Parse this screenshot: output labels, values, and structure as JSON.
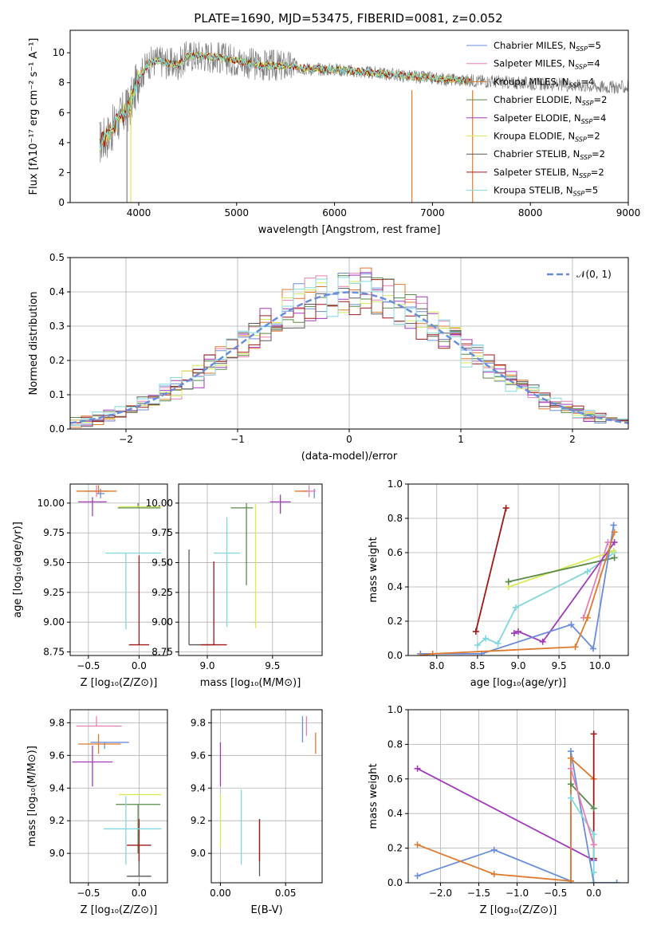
{
  "figure_title": "PLATE=1690, MJD=53475, FIBERID=0081, z=0.052",
  "colors": {
    "chabrier_miles": "#6a8ddb",
    "salpeter_miles": "#e87fb0",
    "kroupa_miles": "#df7a2e",
    "chabrier_elodie": "#5a8a4a",
    "salpeter_elodie": "#a03aba",
    "kroupa_elodie": "#d8ea5a",
    "chabrier_stelib": "#585858",
    "salpeter_stelib": "#a01818",
    "kroupa_stelib": "#80d8de",
    "data_gray": "#808080",
    "normal_dashed": "#6a8ddb",
    "grid": "#b0b0b0"
  },
  "chart_data": [
    {
      "id": "spectrum",
      "type": "line",
      "title": "PLATE=1690, MJD=53475, FIBERID=0081, z=0.052",
      "xlabel": "wavelength [Angstrom, rest frame]",
      "ylabel": "Flux [fλ10⁻¹⁷ erg cm⁻² s⁻¹ A⁻¹]",
      "xlim": [
        3300,
        9000
      ],
      "ylim": [
        0,
        11.5
      ],
      "xticks": [
        4000,
        5000,
        6000,
        7000,
        8000,
        9000
      ],
      "yticks": [
        0,
        2,
        4,
        6,
        8,
        10
      ],
      "grid": false,
      "legend_placement": "right",
      "legend": [
        {
          "label": "Chabrier MILES, N",
          "sub": "SSP",
          "suffix": "=5",
          "color_key": "chabrier_miles"
        },
        {
          "label": "Salpeter MILES, N",
          "sub": "SSP",
          "suffix": "=4",
          "color_key": "salpeter_miles"
        },
        {
          "label": "Kroupa MILES, N",
          "sub": "SSP",
          "suffix": "=4",
          "color_key": "kroupa_miles"
        },
        {
          "label": "Chabrier ELODIE, N",
          "sub": "SSP",
          "suffix": "=2",
          "color_key": "chabrier_elodie"
        },
        {
          "label": "Salpeter ELODIE, N",
          "sub": "SSP",
          "suffix": "=4",
          "color_key": "salpeter_elodie"
        },
        {
          "label": "Kroupa ELODIE, N",
          "sub": "SSP",
          "suffix": "=2",
          "color_key": "kroupa_elodie"
        },
        {
          "label": "Chabrier STELIB, N",
          "sub": "SSP",
          "suffix": "=2",
          "color_key": "chabrier_stelib"
        },
        {
          "label": "Salpeter STELIB, N",
          "sub": "SSP",
          "suffix": "=2",
          "color_key": "salpeter_stelib"
        },
        {
          "label": "Kroupa STELIB, N",
          "sub": "SSP",
          "suffix": "=5",
          "color_key": "kroupa_stelib"
        }
      ],
      "data_envelope": {
        "x": [
          3600,
          3700,
          3800,
          3900,
          4000,
          4100,
          4200,
          4300,
          4400,
          4500,
          4700,
          5000,
          5200,
          5500,
          5800,
          6000,
          6300,
          6600,
          6800,
          7000,
          7200,
          7400,
          7600,
          7800,
          8000,
          8200,
          8400,
          8600,
          8800,
          9000
        ],
        "y": [
          4.0,
          4.6,
          5.6,
          6.3,
          8.3,
          9.3,
          9.5,
          9.3,
          9.2,
          9.8,
          9.8,
          9.5,
          9.2,
          9.1,
          8.9,
          8.9,
          8.7,
          8.55,
          8.4,
          8.3,
          8.2,
          8.15,
          8.1,
          8.0,
          7.95,
          7.9,
          7.85,
          7.8,
          7.7,
          7.7
        ]
      },
      "model_range_x": [
        3600,
        7400
      ]
    },
    {
      "id": "residuals",
      "type": "line",
      "xlabel": "(data-model)/error",
      "ylabel": "Normed distribution",
      "xlim": [
        -2.5,
        2.5
      ],
      "ylim": [
        0,
        0.5
      ],
      "xticks": [
        -2,
        -1,
        0,
        1,
        2
      ],
      "xticklabels": [
        "−2",
        "−1",
        "0",
        "1",
        "2"
      ],
      "yticks": [
        0.0,
        0.1,
        0.2,
        0.3,
        0.4,
        0.5
      ],
      "grid": true,
      "legend_placement": "top-right",
      "legend": [
        {
          "label": "𝒩(0, 1)",
          "color_key": "normal_dashed",
          "dashed": true
        }
      ],
      "series": [
        {
          "name": "𝒩(0, 1)",
          "function": "normal",
          "mu": 0,
          "sigma": 1
        }
      ]
    },
    {
      "id": "age_vs_Z",
      "type": "scatter",
      "xlabel": "Z [log₁₀(Z/Z⊙)]",
      "ylabel": "age  [log₁₀(age/yr)]",
      "xlim": [
        -0.68,
        0.28
      ],
      "ylim": [
        8.72,
        10.16
      ],
      "xticks": [
        -0.5,
        0.0
      ],
      "xticklabels": [
        "−0.5",
        "0.0"
      ],
      "yticks": [
        8.75,
        9.0,
        9.25,
        9.5,
        9.75,
        10.0
      ],
      "yticklabels": [
        "8.75",
        "9.00",
        "9.25",
        "9.50",
        "9.75",
        "10.00"
      ],
      "grid": true,
      "points": [
        {
          "color_key": "chabrier_miles",
          "x": -0.38,
          "y": 10.08,
          "xerr": [
            0.04,
            0.04
          ],
          "yerr": [
            0.04,
            0.04
          ]
        },
        {
          "color_key": "salpeter_miles",
          "x": -0.42,
          "y": 10.1,
          "xerr": [
            0.12,
            0.12
          ],
          "yerr": [
            0.05,
            0.05
          ]
        },
        {
          "color_key": "kroupa_miles",
          "x": -0.4,
          "y": 10.1,
          "xerr": [
            0.22,
            0.18
          ],
          "yerr": [
            0.02,
            0.05
          ]
        },
        {
          "color_key": "chabrier_elodie",
          "x": -0.01,
          "y": 9.96,
          "xerr": [
            0.2,
            0.22
          ],
          "yerr": [
            0.0,
            0.04
          ]
        },
        {
          "color_key": "salpeter_elodie",
          "x": -0.46,
          "y": 10.01,
          "xerr": [
            0.14,
            0.14
          ],
          "yerr": [
            0.12,
            0.04
          ]
        },
        {
          "color_key": "kroupa_elodie",
          "x": 0.0,
          "y": 9.97,
          "xerr": [
            0.2,
            0.22
          ],
          "yerr": [
            0.0,
            0.0
          ]
        },
        {
          "color_key": "chabrier_stelib",
          "x": 0.0,
          "y": 9.6,
          "xerr": [
            0.0,
            0.0
          ],
          "yerr": [
            0.0,
            0.0
          ]
        },
        {
          "color_key": "salpeter_stelib",
          "x": 0.0,
          "y": 8.81,
          "xerr": [
            0.1,
            0.1
          ],
          "yerr": [
            0.0,
            0.75
          ]
        },
        {
          "color_key": "kroupa_stelib",
          "x": -0.13,
          "y": 9.58,
          "xerr": [
            0.2,
            0.35
          ],
          "yerr": [
            0.64,
            0.0
          ]
        }
      ]
    },
    {
      "id": "age_vs_mass",
      "type": "scatter",
      "xlabel": "mass [log₁₀(M/M⊙)]",
      "ylabel": "",
      "xlim": [
        8.78,
        9.88
      ],
      "ylim": [
        8.72,
        10.16
      ],
      "xticks": [
        9.0,
        9.5
      ],
      "xticklabels": [
        "9.0",
        "9.5"
      ],
      "yticks": [
        8.75,
        9.0,
        9.25,
        9.5,
        9.75,
        10.0
      ],
      "yticklabels": [
        "8.75",
        "9.00",
        "9.25",
        "9.50",
        "9.75",
        "10.00"
      ],
      "grid": true,
      "points": [
        {
          "color_key": "chabrier_miles",
          "x": 9.82,
          "y": 10.08,
          "xerr": [
            0.0,
            0.0
          ],
          "yerr": [
            0.04,
            0.04
          ]
        },
        {
          "color_key": "salpeter_miles",
          "x": 9.78,
          "y": 10.1,
          "xerr": [
            0.05,
            0.05
          ],
          "yerr": [
            0.05,
            0.05
          ]
        },
        {
          "color_key": "kroupa_miles",
          "x": 9.72,
          "y": 10.1,
          "xerr": [
            0.05,
            0.05
          ],
          "yerr": [
            0.0,
            0.0
          ]
        },
        {
          "color_key": "chabrier_elodie",
          "x": 9.3,
          "y": 9.96,
          "xerr": [
            0.12,
            0.05
          ],
          "yerr": [
            0.65,
            0.04
          ]
        },
        {
          "color_key": "salpeter_elodie",
          "x": 9.56,
          "y": 10.01,
          "xerr": [
            0.08,
            0.08
          ],
          "yerr": [
            0.1,
            0.06
          ]
        },
        {
          "color_key": "kroupa_elodie",
          "x": 9.37,
          "y": 9.97,
          "xerr": [
            0.0,
            0.0
          ],
          "yerr": [
            1.02,
            0.02
          ]
        },
        {
          "color_key": "chabrier_stelib",
          "x": 8.86,
          "y": 8.81,
          "xerr": [
            0.0,
            0.2
          ],
          "yerr": [
            0.0,
            0.8
          ]
        },
        {
          "color_key": "salpeter_stelib",
          "x": 9.05,
          "y": 8.81,
          "xerr": [
            0.1,
            0.1
          ],
          "yerr": [
            0.0,
            0.7
          ]
        },
        {
          "color_key": "kroupa_stelib",
          "x": 9.15,
          "y": 9.58,
          "xerr": [
            0.1,
            0.1
          ],
          "yerr": [
            0.62,
            0.3
          ]
        }
      ]
    },
    {
      "id": "mass_weight_vs_age",
      "type": "line",
      "xlabel": "age  [log₁₀(age/yr)]",
      "ylabel": "mass weight",
      "xlim": [
        7.65,
        10.35
      ],
      "ylim": [
        0.0,
        1.0
      ],
      "xticks": [
        8.0,
        8.5,
        9.0,
        9.5,
        10.0
      ],
      "xticklabels": [
        "8.0",
        "8.5",
        "9.0",
        "9.5",
        "10.0"
      ],
      "yticks": [
        0.0,
        0.2,
        0.4,
        0.6,
        0.8,
        1.0
      ],
      "grid": true,
      "series": [
        {
          "color_key": "salpeter_miles",
          "x": [
            9.8,
            10.1
          ],
          "y": [
            0.22,
            0.66
          ]
        },
        {
          "color_key": "salpeter_stelib",
          "x": [
            8.48,
            8.85
          ],
          "y": [
            0.14,
            0.86
          ]
        },
        {
          "color_key": "kroupa_stelib",
          "x": [
            8.5,
            8.6,
            8.75,
            8.97,
            9.85,
            10.18
          ],
          "y": [
            0.06,
            0.1,
            0.07,
            0.28,
            0.49,
            0.6
          ]
        },
        {
          "color_key": "kroupa_elodie",
          "x": [
            8.88,
            10.17
          ],
          "y": [
            0.4,
            0.61
          ]
        },
        {
          "color_key": "chabrier_elodie",
          "x": [
            8.88,
            10.18
          ],
          "y": [
            0.43,
            0.57
          ]
        },
        {
          "color_key": "salpeter_elodie",
          "x": [
            8.95,
            9.0,
            9.3,
            10.18
          ],
          "y": [
            0.13,
            0.14,
            0.08,
            0.66
          ]
        },
        {
          "color_key": "chabrier_miles",
          "x": [
            7.8,
            8.55,
            9.65,
            9.92,
            10.17
          ],
          "y": [
            0.01,
            0.01,
            0.18,
            0.04,
            0.76
          ]
        },
        {
          "color_key": "kroupa_miles",
          "x": [
            7.8,
            7.95,
            9.7,
            9.85,
            10.18
          ],
          "y": [
            0.0,
            0.01,
            0.05,
            0.22,
            0.72
          ]
        }
      ]
    },
    {
      "id": "mass_vs_Z",
      "type": "scatter",
      "xlabel": "Z [log₁₀(Z/Z⊙)]",
      "ylabel": "mass [log₁₀(M/M⊙)]",
      "xlim": [
        -0.68,
        0.28
      ],
      "ylim": [
        8.82,
        9.88
      ],
      "xticks": [
        -0.5,
        0.0
      ],
      "xticklabels": [
        "−0.5",
        "0.0"
      ],
      "yticks": [
        9.0,
        9.2,
        9.4,
        9.6,
        9.8
      ],
      "grid": true,
      "points": [
        {
          "color_key": "chabrier_miles",
          "x": -0.34,
          "y": 9.68,
          "xerr": [
            0.14,
            0.24
          ],
          "yerr": [
            0.04,
            0.0
          ]
        },
        {
          "color_key": "salpeter_miles",
          "x": -0.42,
          "y": 9.78,
          "xerr": [
            0.2,
            0.25
          ],
          "yerr": [
            0.0,
            0.06
          ]
        },
        {
          "color_key": "kroupa_miles",
          "x": -0.4,
          "y": 9.67,
          "xerr": [
            0.2,
            0.22
          ],
          "yerr": [
            0.06,
            0.06
          ]
        },
        {
          "color_key": "chabrier_elodie",
          "x": -0.01,
          "y": 9.3,
          "xerr": [
            0.22,
            0.22
          ],
          "yerr": [
            0.3,
            0.0
          ]
        },
        {
          "color_key": "salpeter_elodie",
          "x": -0.46,
          "y": 9.56,
          "xerr": [
            0.2,
            0.2
          ],
          "yerr": [
            0.15,
            0.1
          ]
        },
        {
          "color_key": "kroupa_elodie",
          "x": 0.0,
          "y": 9.36,
          "xerr": [
            0.2,
            0.22
          ],
          "yerr": [
            0.0,
            0.0
          ]
        },
        {
          "color_key": "chabrier_stelib",
          "x": 0.0,
          "y": 8.86,
          "xerr": [
            0.12,
            0.12
          ],
          "yerr": [
            0.0,
            0.19
          ]
        },
        {
          "color_key": "salpeter_stelib",
          "x": 0.0,
          "y": 9.05,
          "xerr": [
            0.12,
            0.12
          ],
          "yerr": [
            0.1,
            0.16
          ]
        },
        {
          "color_key": "kroupa_stelib",
          "x": -0.13,
          "y": 9.15,
          "xerr": [
            0.22,
            0.35
          ],
          "yerr": [
            0.22,
            0.2
          ]
        }
      ]
    },
    {
      "id": "mass_vs_ebv",
      "type": "scatter",
      "xlabel": "E(B-V)",
      "ylabel": "",
      "xlim": [
        -0.007,
        0.078
      ],
      "ylim": [
        8.82,
        9.88
      ],
      "xticks": [
        0.0,
        0.05
      ],
      "xticklabels": [
        "0.00",
        "0.05"
      ],
      "yticks": [
        9.0,
        9.2,
        9.4,
        9.6,
        9.8
      ],
      "grid": true,
      "points": [
        {
          "color_key": "chabrier_miles",
          "x": 0.063,
          "y": 9.78,
          "xerr": [
            0.0,
            0.0
          ],
          "yerr": [
            0.1,
            0.06
          ]
        },
        {
          "color_key": "salpeter_miles",
          "x": 0.066,
          "y": 9.78,
          "xerr": [
            0.0,
            0.0
          ],
          "yerr": [
            0.06,
            0.06
          ]
        },
        {
          "color_key": "kroupa_miles",
          "x": 0.073,
          "y": 9.67,
          "xerr": [
            0.0,
            0.0
          ],
          "yerr": [
            0.06,
            0.07
          ]
        },
        {
          "color_key": "salpeter_elodie",
          "x": 0.0,
          "y": 9.56,
          "xerr": [
            0.0,
            0.0
          ],
          "yerr": [
            0.15,
            0.12
          ]
        },
        {
          "color_key": "kroupa_elodie",
          "x": 0.0,
          "y": 9.2,
          "xerr": [
            0.0,
            0.0
          ],
          "yerr": [
            0.16,
            0.16
          ]
        },
        {
          "color_key": "chabrier_stelib",
          "x": 0.03,
          "y": 9.05,
          "xerr": [
            0.0,
            0.0
          ],
          "yerr": [
            0.19,
            0.16
          ]
        },
        {
          "color_key": "salpeter_stelib",
          "x": 0.03,
          "y": 9.05,
          "xerr": [
            0.0,
            0.0
          ],
          "yerr": [
            0.1,
            0.16
          ]
        },
        {
          "color_key": "kroupa_stelib",
          "x": 0.016,
          "y": 9.15,
          "xerr": [
            0.0,
            0.0
          ],
          "yerr": [
            0.22,
            0.24
          ]
        }
      ]
    },
    {
      "id": "mass_weight_vs_Z",
      "type": "line",
      "xlabel": "Z [log₁₀(Z/Z⊙)]",
      "ylabel": "mass weight",
      "xlim": [
        -2.42,
        0.45
      ],
      "ylim": [
        0.0,
        1.0
      ],
      "xticks": [
        -2.0,
        -1.5,
        -1.0,
        -0.5,
        0.0
      ],
      "xticklabels": [
        "−2.0",
        "−1.5",
        "−1.0",
        "−0.5",
        "0.0"
      ],
      "yticks": [
        0.0,
        0.2,
        0.4,
        0.6,
        0.8,
        1.0
      ],
      "grid": true,
      "series": [
        {
          "color_key": "salpeter_elodie",
          "x": [
            -2.3,
            0.0,
            0.0
          ],
          "y": [
            0.66,
            0.13,
            0.14
          ]
        },
        {
          "color_key": "chabrier_miles",
          "x": [
            -2.3,
            -1.3,
            -0.3,
            -0.3,
            0.0,
            0.3
          ],
          "y": [
            0.04,
            0.19,
            0.01,
            0.76,
            0.0,
            0.0
          ]
        },
        {
          "color_key": "kroupa_miles",
          "x": [
            -2.3,
            -1.3,
            -0.3,
            -0.3,
            0.0
          ],
          "y": [
            0.22,
            0.05,
            0.01,
            0.72,
            0.6
          ]
        },
        {
          "color_key": "salpeter_stelib",
          "x": [
            0.0,
            0.0
          ],
          "y": [
            0.14,
            0.86
          ]
        },
        {
          "color_key": "chabrier_elodie",
          "x": [
            -0.3,
            0.0
          ],
          "y": [
            0.57,
            0.43
          ]
        },
        {
          "color_key": "kroupa_stelib",
          "x": [
            -0.3,
            0.0,
            0.0
          ],
          "y": [
            0.49,
            0.28,
            0.06
          ]
        },
        {
          "color_key": "salpeter_miles",
          "x": [
            -0.3,
            0.0
          ],
          "y": [
            0.66,
            0.22
          ]
        }
      ]
    }
  ]
}
